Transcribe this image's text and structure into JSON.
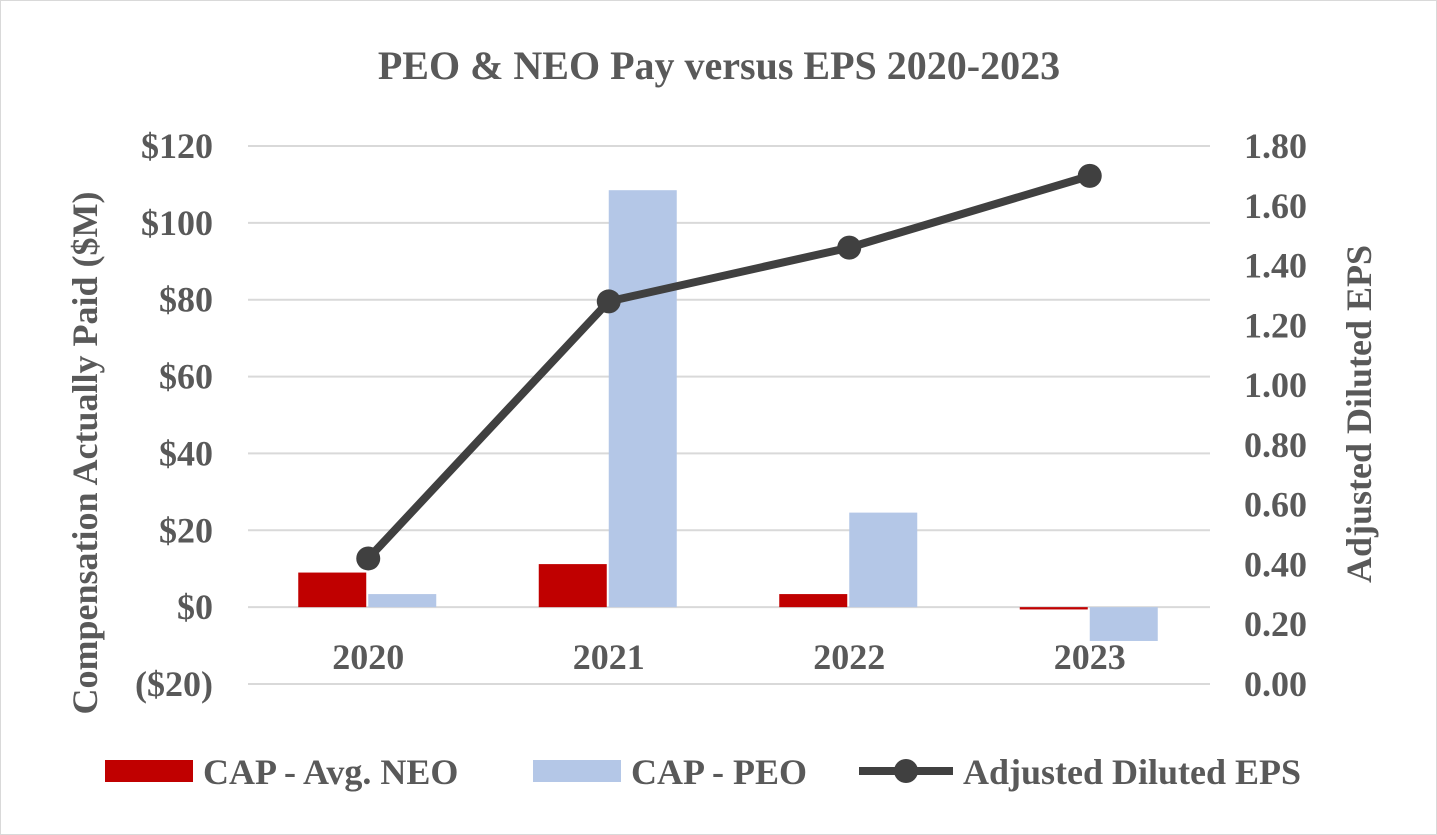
{
  "chart_data": {
    "type": "bar",
    "title": "PEO & NEO Pay versus EPS 2020-2023",
    "categories": [
      "2020",
      "2021",
      "2022",
      "2023"
    ],
    "ylabel": "Compensation Actually Paid ($M)",
    "y2label": "Adjusted Diluted EPS",
    "ylim": [
      -20,
      120
    ],
    "y2lim": [
      0.0,
      1.8
    ],
    "y_ticks": [
      "($20)",
      "$0",
      "$20",
      "$40",
      "$60",
      "$80",
      "$100",
      "$120"
    ],
    "y_tick_values": [
      -20,
      0,
      20,
      40,
      60,
      80,
      100,
      120
    ],
    "y2_ticks": [
      "0.00",
      "0.20",
      "0.40",
      "0.60",
      "0.80",
      "1.00",
      "1.20",
      "1.40",
      "1.60",
      "1.80"
    ],
    "y2_tick_values": [
      0,
      0.2,
      0.4,
      0.6,
      0.8,
      1.0,
      1.2,
      1.4,
      1.6,
      1.8
    ],
    "grid": true,
    "legend_position": "bottom",
    "series": [
      {
        "name": "CAP - Avg. NEO",
        "kind": "bar",
        "axis": "left",
        "color": "#c00000",
        "values": [
          9,
          11.2,
          3.4,
          -0.6
        ]
      },
      {
        "name": "CAP - PEO",
        "kind": "bar",
        "axis": "left",
        "color": "#b4c7e7",
        "values": [
          3.4,
          108.5,
          24.6,
          -8.8
        ]
      },
      {
        "name": "Adjusted Diluted EPS",
        "kind": "line",
        "axis": "right",
        "color": "#404040",
        "values": [
          0.42,
          1.28,
          1.46,
          1.7
        ]
      }
    ]
  }
}
